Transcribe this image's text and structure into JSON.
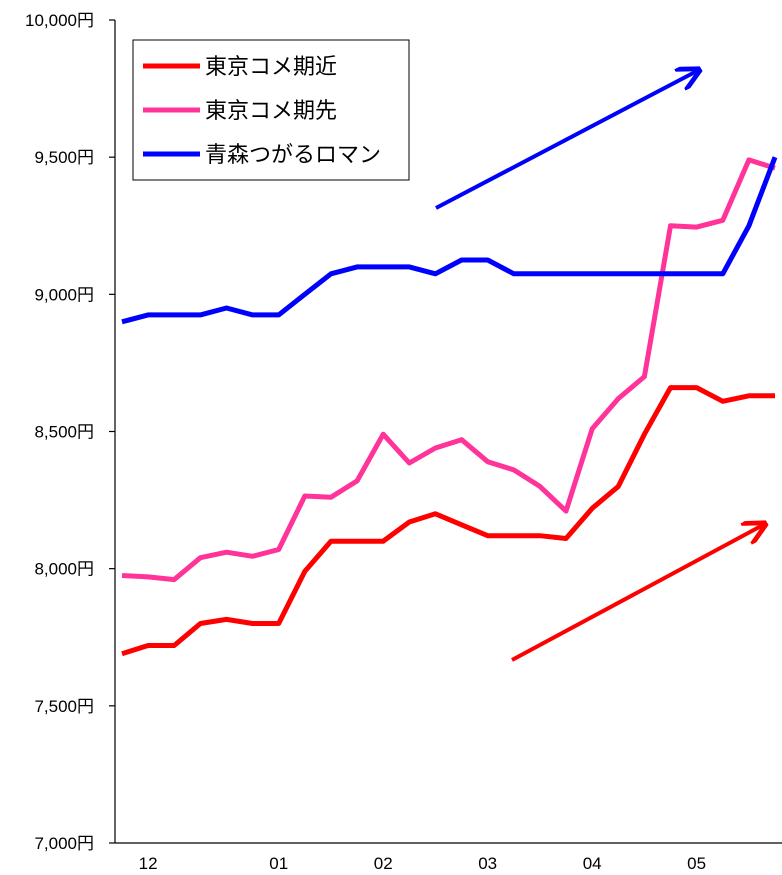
{
  "chart_data": {
    "type": "line",
    "title": "",
    "xlabel": "",
    "ylabel": "",
    "ylim": [
      7000,
      10000
    ],
    "y_ticks": [
      7000,
      7500,
      8000,
      8500,
      9000,
      9500,
      10000
    ],
    "y_tick_labels": [
      "7,000円",
      "7,500円",
      "8,000円",
      "8,500円",
      "9,000円",
      "9,500円",
      "10,000円"
    ],
    "x_tick_labels": [
      "12",
      "01",
      "02",
      "03",
      "04",
      "05"
    ],
    "x_tick_index": [
      1,
      6,
      10,
      14,
      18,
      22
    ],
    "n_points": 26,
    "grid": false,
    "legend_position": "top-left",
    "series": [
      {
        "name": "東京コメ期近",
        "color": "#ff0000",
        "values": [
          7690,
          7720,
          7720,
          7800,
          7815,
          7800,
          7800,
          7990,
          8100,
          8100,
          8100,
          8170,
          8200,
          8160,
          8120,
          8120,
          8120,
          8110,
          8220,
          8300,
          8490,
          8660,
          8660,
          8610,
          8630,
          8630
        ]
      },
      {
        "name": "東京コメ期先",
        "color": "#ff3399",
        "values": [
          7975,
          7970,
          7960,
          8040,
          8060,
          8045,
          8070,
          8265,
          8260,
          8320,
          8490,
          8385,
          8440,
          8470,
          8390,
          8360,
          8300,
          8210,
          8510,
          8620,
          8700,
          9250,
          9245,
          9270,
          9490,
          9460
        ]
      },
      {
        "name": "青森つがるロマン",
        "color": "#0000ff",
        "values": [
          8900,
          8925,
          8925,
          8925,
          8950,
          8925,
          8925,
          9000,
          9075,
          9100,
          9100,
          9100,
          9075,
          9125,
          9125,
          9075,
          9075,
          9075,
          9075,
          9075,
          9075,
          9075,
          9075,
          9075,
          9250,
          9500
        ]
      }
    ],
    "annotations": [
      {
        "type": "arrow",
        "color": "#0000ff"
      },
      {
        "type": "arrow",
        "color": "#ff0000"
      }
    ]
  }
}
